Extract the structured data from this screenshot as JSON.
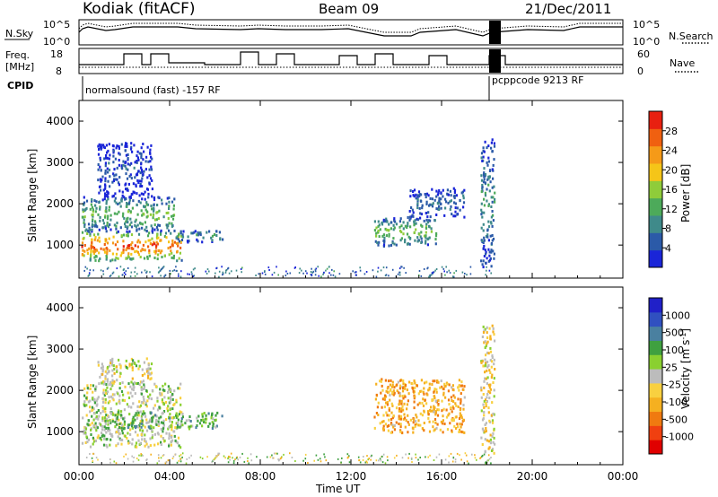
{
  "header": {
    "station": "Kodiak (fitACF)",
    "beam": "Beam 09",
    "date": "21/Dec/2011"
  },
  "status_panels": {
    "left_label_top": "N.Sky",
    "left_scale_top": [
      "10^5",
      "10^0"
    ],
    "right_label_top": "N.Search",
    "right_scale_top": [
      "10^5",
      "10^0"
    ],
    "freq_label": "Freq.",
    "freq_unit": "[MHz]",
    "freq_ticks": [
      "18",
      "8"
    ],
    "nave_label": "Nave",
    "nave_ticks": [
      "60",
      "0"
    ],
    "cpid_label": "CPID",
    "cpid_entries": [
      "normalsound (fast) -157 RF",
      "pcppcode 9213 RF"
    ]
  },
  "colors": {
    "power": [
      "#1a25d8",
      "#2b5aa8",
      "#3f8a8a",
      "#4daa5a",
      "#8fcc3a",
      "#f5c518",
      "#f59a18",
      "#f06010",
      "#e82010"
    ],
    "velocity": [
      "#e00000",
      "#f04010",
      "#f07a10",
      "#f5b020",
      "#f8d040",
      "#bcbcbc",
      "#8ad030",
      "#3fa040",
      "#4a80a0",
      "#3050c0",
      "#2020c8"
    ]
  },
  "chart_data": [
    {
      "type": "heatmap",
      "title": "",
      "xlabel": "",
      "ylabel": "Slant Range [km]",
      "colorbar_label": "Power [dB]",
      "colorbar_ticks": [
        "28",
        "24",
        "20",
        "16",
        "12",
        "8",
        "4"
      ],
      "x_ticks": [
        "00:00",
        "04:00",
        "08:00",
        "12:00",
        "16:00",
        "20:00",
        "00:00"
      ],
      "y_ticks": [
        "1000",
        "2000",
        "3000",
        "4000"
      ],
      "xlim": [
        0,
        24
      ],
      "ylim": [
        200,
        4500
      ],
      "regions": [
        {
          "t_start": 0.1,
          "t_end": 4.5,
          "r_low": 650,
          "r_high": 1350,
          "power": 26
        },
        {
          "t_start": 0.1,
          "t_end": 4.2,
          "r_low": 1350,
          "r_high": 2200,
          "power": 14
        },
        {
          "t_start": 4.2,
          "t_end": 6.3,
          "r_low": 1100,
          "r_high": 1400,
          "power": 10
        },
        {
          "t_start": 0.8,
          "t_end": 3.2,
          "r_low": 2200,
          "r_high": 3500,
          "power": 6
        },
        {
          "t_start": 13.0,
          "t_end": 15.8,
          "r_low": 1000,
          "r_high": 1700,
          "power": 14
        },
        {
          "t_start": 14.5,
          "t_end": 17.0,
          "r_low": 1700,
          "r_high": 2400,
          "power": 8
        },
        {
          "t_start": 17.7,
          "t_end": 18.3,
          "r_low": 500,
          "r_high": 3600,
          "power": 10
        }
      ]
    },
    {
      "type": "heatmap",
      "title": "",
      "xlabel": "Time UT",
      "ylabel": "Slant Range [km]",
      "colorbar_label": "Velocity [m s^-1]",
      "colorbar_ticks": [
        "1000",
        "500",
        "100",
        "25",
        "-25",
        "-100",
        "-500",
        "-1000"
      ],
      "x_ticks": [
        "00:00",
        "04:00",
        "08:00",
        "12:00",
        "16:00",
        "20:00",
        "00:00"
      ],
      "y_ticks": [
        "1000",
        "2000",
        "3000",
        "4000"
      ],
      "xlim": [
        0,
        24
      ],
      "ylim": [
        200,
        4500
      ],
      "regions": [
        {
          "t_start": 0.1,
          "t_end": 4.5,
          "r_low": 650,
          "r_high": 2200,
          "velocity": 10
        },
        {
          "t_start": 1.0,
          "t_end": 6.3,
          "r_low": 1100,
          "r_high": 1500,
          "velocity": 60
        },
        {
          "t_start": 0.8,
          "t_end": 3.2,
          "r_low": 2200,
          "r_high": 2800,
          "velocity": 0
        },
        {
          "t_start": 13.0,
          "t_end": 17.0,
          "r_low": 1000,
          "r_high": 2300,
          "velocity": -80
        },
        {
          "t_start": 17.7,
          "t_end": 18.3,
          "r_low": 500,
          "r_high": 3600,
          "velocity": -20
        }
      ]
    }
  ]
}
